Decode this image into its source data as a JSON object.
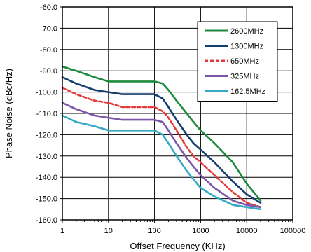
{
  "chart_data": {
    "type": "line",
    "title": "",
    "xlabel": "Offset Frequency (KHz)",
    "ylabel": "Phase Noise (dBc/Hz)",
    "xscale": "log",
    "xlim": [
      1,
      100000
    ],
    "ylim": [
      -160,
      -60
    ],
    "x_ticks": [
      1,
      10,
      100,
      1000,
      10000,
      100000
    ],
    "x_tick_labels": [
      "1",
      "10",
      "100",
      "1000",
      "10000",
      "100000"
    ],
    "y_ticks": [
      -60,
      -70,
      -80,
      -90,
      -100,
      -110,
      -120,
      -130,
      -140,
      -150,
      -160
    ],
    "y_tick_labels": [
      "-60.0",
      "-70.0",
      "-80.0",
      "-90.0",
      "-100.0",
      "-110.0",
      "-120.0",
      "-130.0",
      "-140.0",
      "-150.0",
      "-160.0"
    ],
    "grid": true,
    "legend_position": "top-right",
    "x": [
      1,
      2,
      5,
      10,
      20,
      50,
      100,
      150,
      200,
      300,
      500,
      700,
      1000,
      2000,
      5000,
      10000,
      20000
    ],
    "series": [
      {
        "name": "2600MHz",
        "color": "#1e8a3e",
        "dash": false,
        "values": [
          -88,
          -90,
          -93,
          -95,
          -95,
          -95,
          -95,
          -96,
          -99,
          -104,
          -110,
          -114,
          -118,
          -124,
          -133,
          -143,
          -151
        ]
      },
      {
        "name": "1300MHz",
        "color": "#153e6e",
        "dash": false,
        "values": [
          -93,
          -96,
          -99,
          -100,
          -101,
          -101,
          -101,
          -103,
          -107,
          -113,
          -120,
          -124,
          -127,
          -133,
          -142,
          -148,
          -152
        ]
      },
      {
        "name": "650MHz",
        "color": "#e23a3a",
        "dash": true,
        "values": [
          -98,
          -101,
          -104,
          -105,
          -107,
          -107,
          -107,
          -109,
          -112,
          -118,
          -126,
          -130,
          -133,
          -139,
          -147,
          -152,
          -154
        ]
      },
      {
        "name": "325MHz",
        "color": "#7b56a8",
        "dash": false,
        "values": [
          -105,
          -108,
          -111,
          -112,
          -113,
          -113,
          -113,
          -114,
          -118,
          -124,
          -131,
          -135,
          -139,
          -145,
          -151,
          -153,
          -154
        ]
      },
      {
        "name": "162.5MHz",
        "color": "#38a9c4",
        "dash": false,
        "values": [
          -111,
          -114,
          -116,
          -118,
          -118,
          -118,
          -118,
          -120,
          -124,
          -130,
          -137,
          -141,
          -145,
          -149,
          -153,
          -154,
          -155
        ]
      }
    ]
  }
}
